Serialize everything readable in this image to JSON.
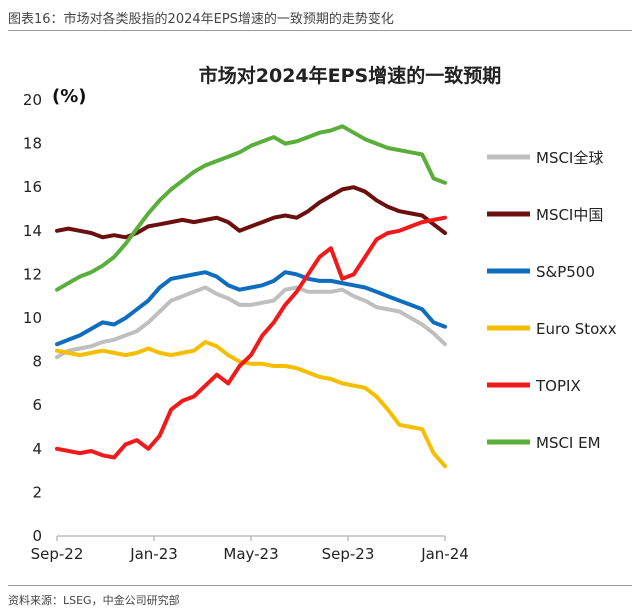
{
  "caption": "图表16：市场对各类股指的2024年EPS增速的一致预期的走势变化",
  "source": "资料来源：LSEG，中金公司研究部",
  "chart_data": {
    "type": "line",
    "title": "市场对2024年EPS增速的一致预期",
    "ylabel": "(%)",
    "xlabel": "",
    "ylim": [
      0,
      20
    ],
    "yticks": [
      0,
      2,
      4,
      6,
      8,
      10,
      12,
      14,
      16,
      18,
      20
    ],
    "x_range": [
      0,
      68
    ],
    "xticks": [
      {
        "label": "Sep-22",
        "x": 0
      },
      {
        "label": "Jan-23",
        "x": 17
      },
      {
        "label": "May-23",
        "x": 34
      },
      {
        "label": "Sep-23",
        "x": 51
      },
      {
        "label": "Jan-24",
        "x": 68
      }
    ],
    "x": [
      0,
      2,
      4,
      6,
      8,
      10,
      12,
      14,
      16,
      18,
      20,
      22,
      24,
      26,
      28,
      30,
      32,
      34,
      36,
      38,
      40,
      42,
      44,
      46,
      48,
      50,
      52,
      54,
      56,
      58,
      60,
      62,
      64,
      66,
      68
    ],
    "series": [
      {
        "name": "MSCI全球",
        "color": "#bfbfbf",
        "values": [
          8.2,
          8.5,
          8.6,
          8.7,
          8.9,
          9.0,
          9.2,
          9.4,
          9.8,
          10.3,
          10.8,
          11.0,
          11.2,
          11.4,
          11.1,
          10.9,
          10.6,
          10.6,
          10.7,
          10.8,
          11.3,
          11.4,
          11.2,
          11.2,
          11.2,
          11.3,
          11.0,
          10.8,
          10.5,
          10.4,
          10.3,
          10.0,
          9.7,
          9.3,
          8.8
        ]
      },
      {
        "name": "MSCI中国",
        "color": "#6b0f0f",
        "values": [
          14.0,
          14.1,
          14.0,
          13.9,
          13.7,
          13.8,
          13.7,
          13.9,
          14.2,
          14.3,
          14.4,
          14.5,
          14.4,
          14.5,
          14.6,
          14.4,
          14.0,
          14.2,
          14.4,
          14.6,
          14.7,
          14.6,
          14.9,
          15.3,
          15.6,
          15.9,
          16.0,
          15.8,
          15.4,
          15.1,
          14.9,
          14.8,
          14.7,
          14.3,
          13.9
        ]
      },
      {
        "name": "S&P500",
        "color": "#0f6dc0",
        "values": [
          8.8,
          9.0,
          9.2,
          9.5,
          9.8,
          9.7,
          10.0,
          10.4,
          10.8,
          11.4,
          11.8,
          11.9,
          12.0,
          12.1,
          11.9,
          11.5,
          11.3,
          11.4,
          11.5,
          11.7,
          12.1,
          12.0,
          11.8,
          11.7,
          11.7,
          11.6,
          11.5,
          11.4,
          11.2,
          11.0,
          10.8,
          10.6,
          10.4,
          9.8,
          9.6
        ]
      },
      {
        "name": "Euro Stoxx",
        "color": "#f5be00",
        "values": [
          8.5,
          8.4,
          8.3,
          8.4,
          8.5,
          8.4,
          8.3,
          8.4,
          8.6,
          8.4,
          8.3,
          8.4,
          8.5,
          8.9,
          8.7,
          8.3,
          8.0,
          7.9,
          7.9,
          7.8,
          7.8,
          7.7,
          7.5,
          7.3,
          7.2,
          7.0,
          6.9,
          6.8,
          6.4,
          5.8,
          5.1,
          5.0,
          4.9,
          3.8,
          3.2
        ]
      },
      {
        "name": "TOPIX",
        "color": "#f01a1a",
        "values": [
          4.0,
          3.9,
          3.8,
          3.9,
          3.7,
          3.6,
          4.2,
          4.4,
          4.0,
          4.6,
          5.8,
          6.2,
          6.4,
          6.9,
          7.4,
          7.0,
          7.8,
          8.3,
          9.2,
          9.8,
          10.6,
          11.2,
          12.0,
          12.8,
          13.2,
          11.8,
          12.0,
          12.8,
          13.6,
          13.9,
          14.0,
          14.2,
          14.4,
          14.5,
          14.6
        ]
      },
      {
        "name": "MSCI EM",
        "color": "#5aaf3a",
        "values": [
          11.3,
          11.6,
          11.9,
          12.1,
          12.4,
          12.8,
          13.4,
          14.1,
          14.8,
          15.4,
          15.9,
          16.3,
          16.7,
          17.0,
          17.2,
          17.4,
          17.6,
          17.9,
          18.1,
          18.3,
          18.0,
          18.1,
          18.3,
          18.5,
          18.6,
          18.8,
          18.5,
          18.2,
          18.0,
          17.8,
          17.7,
          17.6,
          17.5,
          16.4,
          16.2
        ]
      }
    ],
    "legend": "right"
  }
}
